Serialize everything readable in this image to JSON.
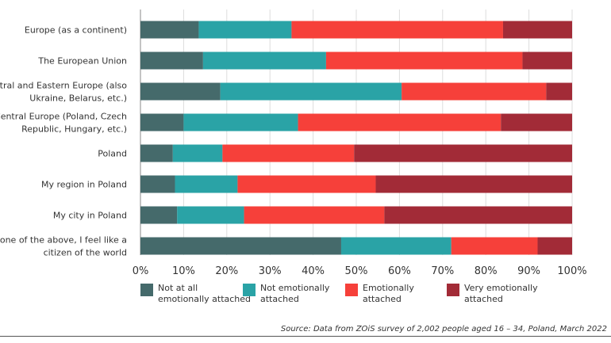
{
  "chart_data": {
    "type": "bar",
    "orientation": "horizontal",
    "stacked": true,
    "percent_scale": true,
    "categories": [
      "Europe (as a continent)",
      "The European Union",
      "Central and Eastern Europe (also\nUkraine, Belarus, etc.)",
      "Central Europe (Poland, Czech\nRepublic, Hungary, etc.)",
      "Poland",
      "My region in Poland",
      "My city in Poland",
      "None of the above, I feel like a\ncitizen of the world"
    ],
    "series": [
      {
        "name": "Not at all\nemotionally attached",
        "color": "#456a6b",
        "values": [
          13.5,
          14.5,
          18.5,
          10,
          7.5,
          8,
          8.5,
          46.5
        ]
      },
      {
        "name": "Not emotionally\nattached",
        "color": "#2aa3a6",
        "values": [
          21.5,
          28.5,
          42,
          26.5,
          11.5,
          14.5,
          15.5,
          25.5
        ]
      },
      {
        "name": "Emotionally\nattached",
        "color": "#f6403a",
        "values": [
          49,
          45.5,
          33.5,
          47,
          30.5,
          32,
          32.5,
          20
        ]
      },
      {
        "name": "Very emotionally\nattached",
        "color": "#a22b37",
        "values": [
          16,
          11.5,
          6,
          16.5,
          50.5,
          45.5,
          43.5,
          8
        ]
      }
    ],
    "xlim": [
      0,
      100
    ],
    "x_ticks": [
      "0%",
      "10%",
      "20%",
      "30%",
      "40%",
      "50%",
      "60%",
      "70%",
      "80%",
      "90%",
      "100%"
    ],
    "grid": true,
    "legend_position": "bottom",
    "source": "Source: Data from ZOiS survey of 2,002 people aged 16 – 34, Poland, March 2022"
  }
}
